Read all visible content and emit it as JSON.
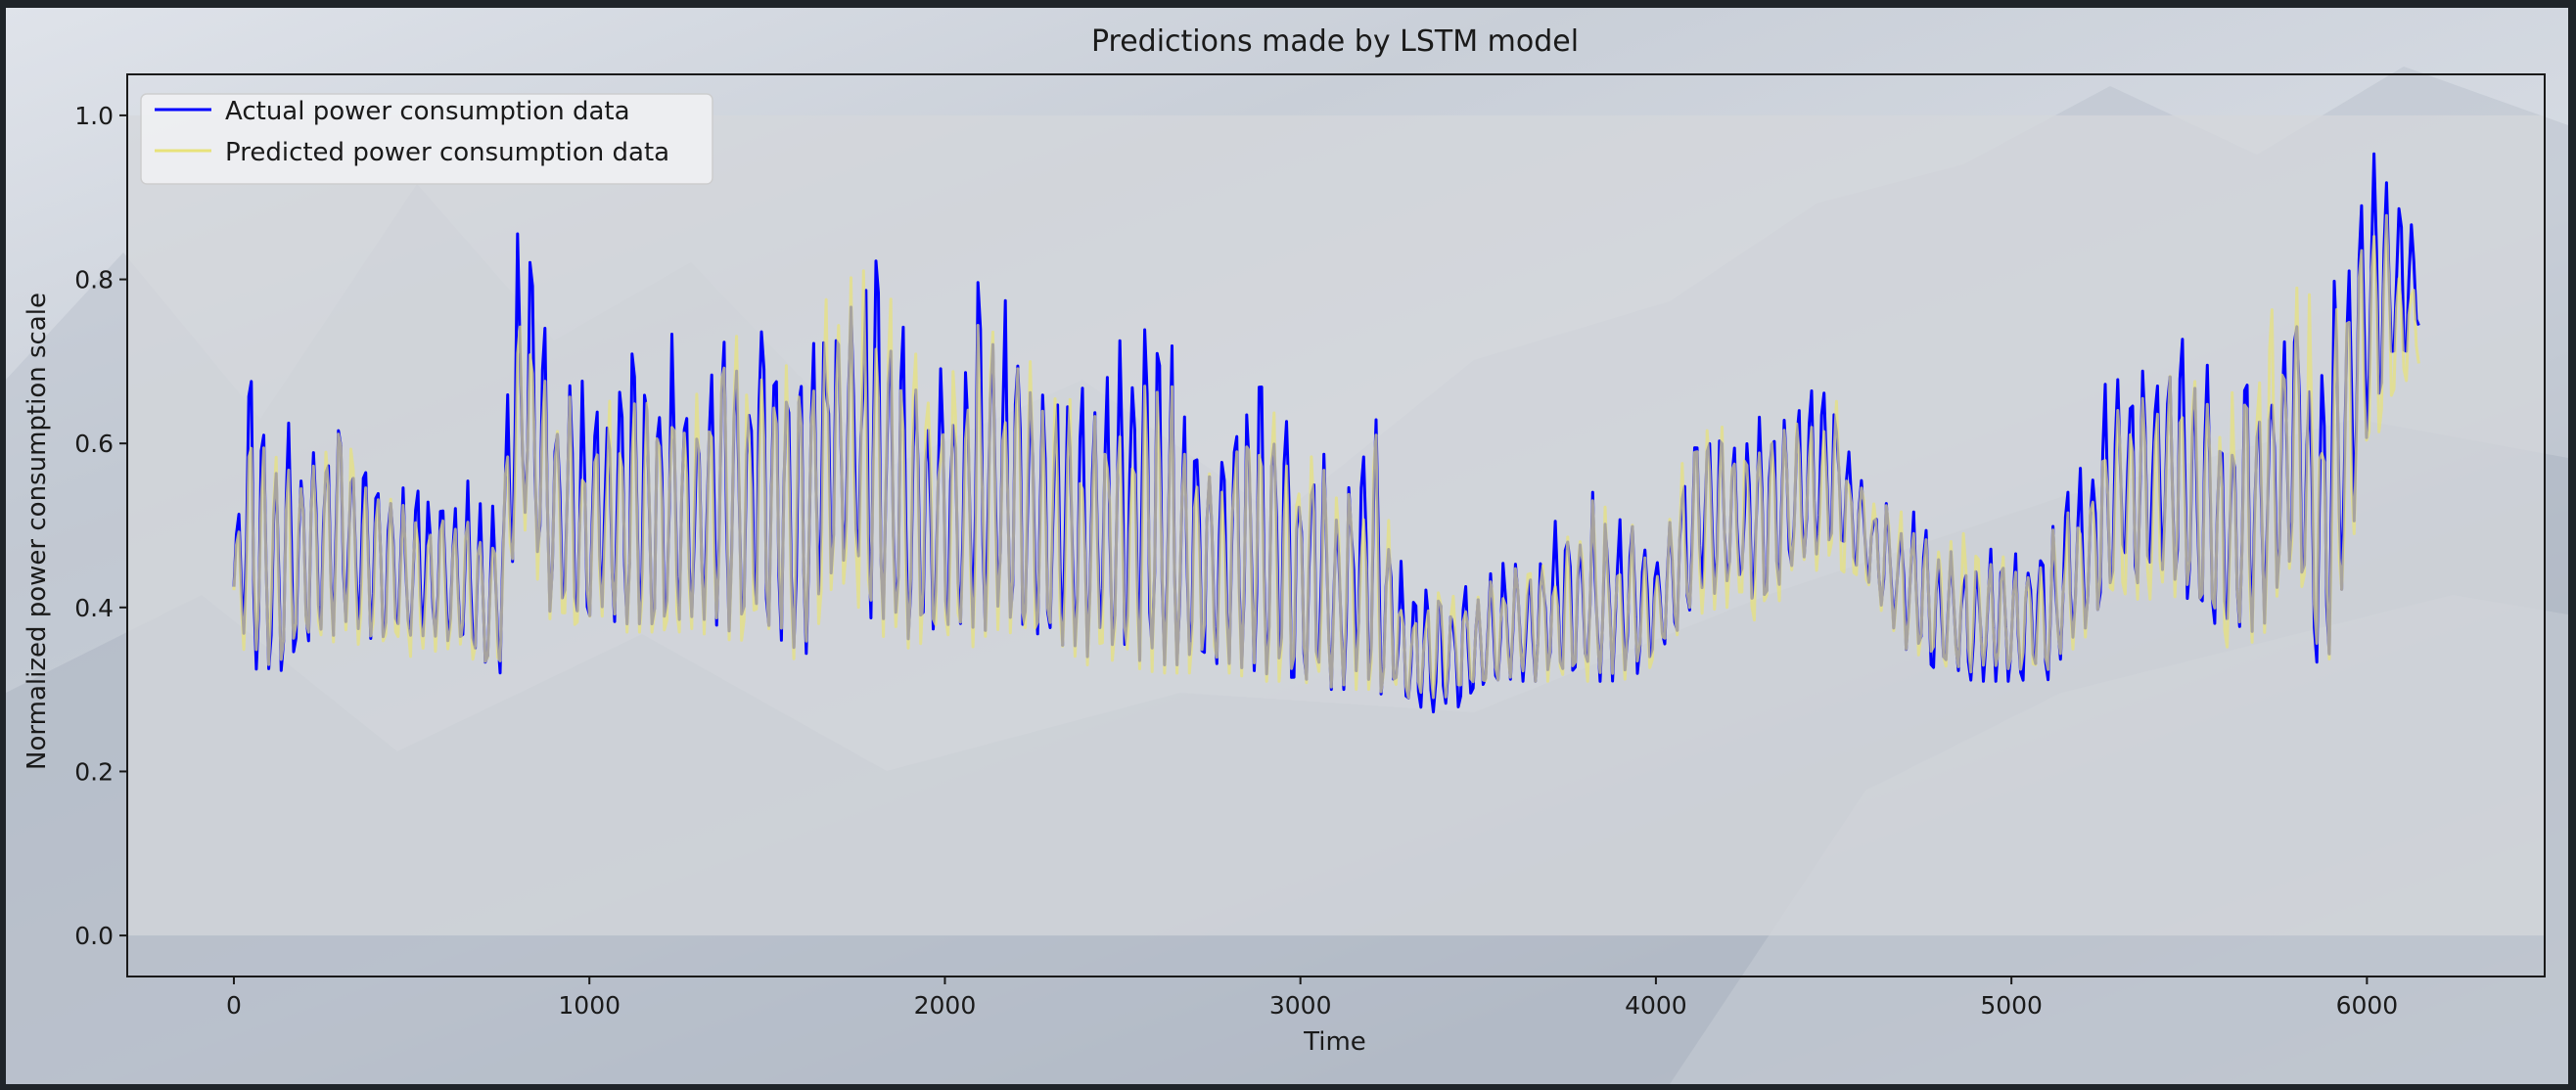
{
  "chart_data": {
    "type": "line",
    "title": "Predictions made by LSTM model",
    "xlabel": "Time",
    "ylabel": "Normalized power consumption scale",
    "xlim": [
      -300,
      6500
    ],
    "ylim": [
      -0.05,
      1.05
    ],
    "xticks": [
      0,
      1000,
      2000,
      3000,
      4000,
      5000,
      6000
    ],
    "yticks": [
      0.0,
      0.2,
      0.4,
      0.6,
      0.8,
      1.0
    ],
    "xtick_labels": [
      "0",
      "1000",
      "2000",
      "3000",
      "4000",
      "5000",
      "6000"
    ],
    "ytick_labels": [
      "0.0",
      "0.2",
      "0.4",
      "0.6",
      "0.8",
      "1.0"
    ],
    "shaded_band": [
      0.0,
      1.0
    ],
    "legend_position": "upper-left",
    "grid": false,
    "series": [
      {
        "name": "Actual power consumption data",
        "color": "#0000ff",
        "envelope_x": [
          0,
          50,
          100,
          200,
          300,
          400,
          500,
          600,
          700,
          750,
          800,
          850,
          900,
          1000,
          1100,
          1200,
          1300,
          1400,
          1500,
          1600,
          1700,
          1800,
          1900,
          2000,
          2100,
          2200,
          2300,
          2400,
          2500,
          2600,
          2700,
          2800,
          2900,
          3000,
          3100,
          3200,
          3300,
          3400,
          3500,
          3600,
          3700,
          3800,
          3900,
          4000,
          4100,
          4200,
          4300,
          4400,
          4500,
          4600,
          4700,
          4800,
          4900,
          5000,
          5100,
          5200,
          5300,
          5400,
          5500,
          5600,
          5700,
          5800,
          5850,
          5900,
          6000,
          6050,
          6100,
          6150
        ],
        "envelope_max": [
          0.5,
          0.74,
          0.66,
          0.63,
          0.7,
          0.6,
          0.57,
          0.56,
          0.55,
          0.58,
          0.9,
          0.83,
          0.7,
          0.67,
          0.77,
          0.73,
          0.74,
          0.79,
          0.8,
          0.77,
          0.83,
          0.88,
          0.77,
          0.71,
          0.83,
          0.78,
          0.72,
          0.67,
          0.73,
          0.76,
          0.68,
          0.67,
          0.71,
          0.65,
          0.6,
          0.66,
          0.42,
          0.45,
          0.44,
          0.48,
          0.52,
          0.56,
          0.54,
          0.5,
          0.64,
          0.66,
          0.65,
          0.69,
          0.68,
          0.56,
          0.55,
          0.5,
          0.5,
          0.47,
          0.52,
          0.59,
          0.74,
          0.75,
          0.78,
          0.68,
          0.76,
          0.87,
          0.81,
          0.8,
          0.97,
          0.96,
          0.92,
          0.85
        ],
        "envelope_min": [
          0.39,
          0.33,
          0.31,
          0.35,
          0.37,
          0.36,
          0.35,
          0.36,
          0.33,
          0.32,
          0.52,
          0.45,
          0.38,
          0.39,
          0.38,
          0.38,
          0.39,
          0.37,
          0.38,
          0.33,
          0.47,
          0.38,
          0.36,
          0.38,
          0.37,
          0.38,
          0.36,
          0.34,
          0.34,
          0.33,
          0.33,
          0.33,
          0.32,
          0.3,
          0.3,
          0.3,
          0.28,
          0.27,
          0.29,
          0.31,
          0.31,
          0.31,
          0.31,
          0.33,
          0.4,
          0.42,
          0.4,
          0.46,
          0.47,
          0.43,
          0.35,
          0.32,
          0.31,
          0.31,
          0.31,
          0.37,
          0.43,
          0.43,
          0.41,
          0.35,
          0.37,
          0.46,
          0.32,
          0.32,
          0.61,
          0.66,
          0.7,
          0.74
        ]
      },
      {
        "name": "Predicted power consumption data",
        "color": "#e8e27a",
        "envelope_x": [
          0,
          50,
          100,
          200,
          300,
          400,
          500,
          600,
          700,
          750,
          800,
          850,
          900,
          1000,
          1100,
          1200,
          1300,
          1400,
          1500,
          1600,
          1700,
          1800,
          1900,
          2000,
          2100,
          2200,
          2300,
          2400,
          2500,
          2600,
          2700,
          2800,
          2900,
          3000,
          3100,
          3200,
          3300,
          3400,
          3500,
          3600,
          3700,
          3800,
          3900,
          4000,
          4100,
          4200,
          4300,
          4400,
          4500,
          4600,
          4700,
          4800,
          4900,
          5000,
          5100,
          5200,
          5300,
          5400,
          5500,
          5600,
          5700,
          5800,
          5850,
          5900,
          6000,
          6050,
          6100,
          6150
        ],
        "envelope_max": [
          0.47,
          0.68,
          0.61,
          0.6,
          0.66,
          0.58,
          0.55,
          0.54,
          0.53,
          0.55,
          0.83,
          0.79,
          0.67,
          0.64,
          0.73,
          0.7,
          0.71,
          0.76,
          0.77,
          0.74,
          0.8,
          0.84,
          0.74,
          0.69,
          0.8,
          0.75,
          0.7,
          0.65,
          0.7,
          0.73,
          0.66,
          0.65,
          0.69,
          0.63,
          0.58,
          0.64,
          0.41,
          0.44,
          0.43,
          0.47,
          0.5,
          0.54,
          0.52,
          0.49,
          0.62,
          0.64,
          0.63,
          0.67,
          0.66,
          0.55,
          0.54,
          0.49,
          0.49,
          0.46,
          0.51,
          0.57,
          0.71,
          0.72,
          0.75,
          0.66,
          0.73,
          0.83,
          0.78,
          0.77,
          0.9,
          0.88,
          0.86,
          0.81
        ],
        "envelope_min": [
          0.36,
          0.34,
          0.33,
          0.35,
          0.36,
          0.35,
          0.34,
          0.35,
          0.33,
          0.32,
          0.5,
          0.44,
          0.37,
          0.37,
          0.37,
          0.37,
          0.37,
          0.36,
          0.36,
          0.33,
          0.44,
          0.37,
          0.35,
          0.36,
          0.35,
          0.36,
          0.35,
          0.33,
          0.33,
          0.32,
          0.32,
          0.32,
          0.31,
          0.31,
          0.3,
          0.3,
          0.29,
          0.29,
          0.3,
          0.31,
          0.31,
          0.31,
          0.31,
          0.33,
          0.39,
          0.4,
          0.38,
          0.44,
          0.45,
          0.42,
          0.35,
          0.33,
          0.32,
          0.32,
          0.32,
          0.36,
          0.41,
          0.41,
          0.4,
          0.35,
          0.36,
          0.44,
          0.33,
          0.33,
          0.58,
          0.63,
          0.67,
          0.7
        ]
      }
    ]
  }
}
